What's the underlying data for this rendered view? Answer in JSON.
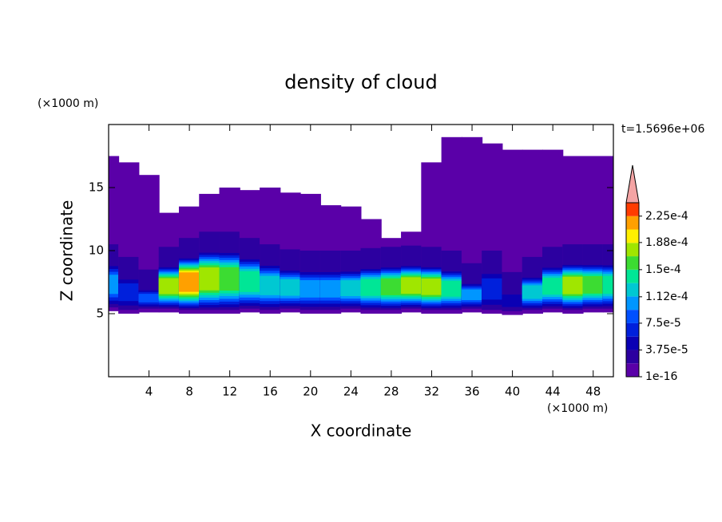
{
  "chart_data": {
    "type": "contour",
    "title": "density of cloud",
    "xlabel": "X coordinate",
    "ylabel": "Z coordinate",
    "x_unit": "(×1000 m)",
    "y_unit": "(×1000 m)",
    "time_label": "t=1.5696e+06",
    "xlim": [
      0,
      50
    ],
    "ylim": [
      0,
      20
    ],
    "xticks": [
      4,
      8,
      12,
      16,
      20,
      24,
      28,
      32,
      36,
      40,
      44,
      48
    ],
    "yticks": [
      5,
      10,
      15
    ],
    "x": [
      0,
      2,
      4,
      6,
      8,
      10,
      12,
      14,
      16,
      18,
      20,
      22,
      24,
      26,
      28,
      30,
      32,
      34,
      36,
      38,
      40,
      42,
      44,
      46,
      48,
      50
    ],
    "cloud_top": [
      17.5,
      17,
      16,
      13,
      13.5,
      14.5,
      15,
      14.8,
      15,
      14.6,
      14.5,
      13.6,
      13.5,
      12.5,
      11,
      11.5,
      17,
      19,
      19,
      18.5,
      18,
      18,
      18,
      17.5,
      17.5,
      17.5
    ],
    "cloud_base": [
      5.2,
      5,
      5.1,
      5.1,
      5,
      5,
      5,
      5.1,
      5,
      5.1,
      5,
      5,
      5.1,
      5,
      5,
      5.1,
      5,
      5,
      5.1,
      5,
      4.9,
      5,
      5.1,
      5,
      5.1,
      5.1
    ],
    "core_top": [
      9,
      8,
      7,
      8.8,
      9.5,
      10,
      10,
      9.5,
      9,
      8.6,
      8.5,
      8.5,
      8.5,
      8.7,
      8.8,
      8.9,
      8.8,
      8.5,
      7.5,
      8.5,
      6.8,
      8,
      8.8,
      9,
      9,
      9
    ],
    "peak": [
      0.0001,
      6e-05,
      8e-05,
      0.00018,
      0.00021,
      0.00018,
      0.00016,
      0.00015,
      0.00012,
      0.00012,
      0.00011,
      0.00011,
      0.00012,
      0.00014,
      0.00016,
      0.00018,
      0.00018,
      0.00015,
      0.00011,
      7.5e-05,
      5e-05,
      0.00012,
      0.00015,
      0.00017,
      0.00016,
      0.00014
    ],
    "colorbar": {
      "colors": [
        "#5a00a8",
        "#2c00a0",
        "#0a00b4",
        "#0020dc",
        "#0050ff",
        "#0096ff",
        "#00c8d2",
        "#00e696",
        "#3cdc32",
        "#a0e600",
        "#fff000",
        "#ffa000",
        "#ff3c00"
      ],
      "over_color": "#f4a4a4",
      "lim": [
        1e-16,
        0.00024375
      ],
      "ticks": [
        {
          "value": 1e-16,
          "label": "1e-16"
        },
        {
          "value": 3.75e-05,
          "label": "3.75e-5"
        },
        {
          "value": 7.5e-05,
          "label": "7.5e-5"
        },
        {
          "value": 0.000112,
          "label": "1.12e-4"
        },
        {
          "value": 0.00015,
          "label": "1.5e-4"
        },
        {
          "value": 0.000188,
          "label": "1.88e-4"
        },
        {
          "value": 0.000225,
          "label": "2.25e-4"
        }
      ]
    }
  }
}
